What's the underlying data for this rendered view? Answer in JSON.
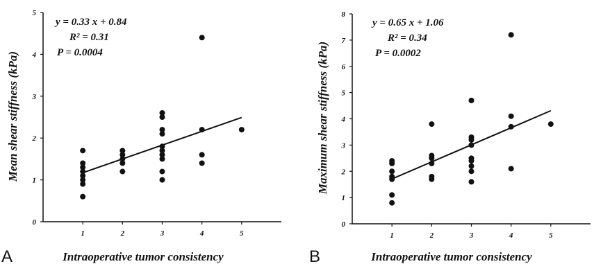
{
  "chart_data": [
    {
      "type": "scatter",
      "panel_label": "A",
      "xlabel": "Intraoperative tumor consistency",
      "ylabel": "Mean shear stiffness (kPa)",
      "xlim": [
        0,
        6
      ],
      "ylim": [
        0,
        5
      ],
      "xticks": [
        1,
        2,
        3,
        4,
        5
      ],
      "yticks": [
        0,
        1,
        2,
        3,
        4,
        5
      ],
      "annotations": [
        "y = 0.33 x + 0.84",
        "R² = 0.31",
        "P = 0.0004"
      ],
      "trendline": {
        "slope": 0.33,
        "intercept": 0.84,
        "x_start": 1,
        "x_end": 5
      },
      "points": [
        [
          1,
          1.7
        ],
        [
          1,
          1.4
        ],
        [
          1,
          1.3
        ],
        [
          1,
          1.2
        ],
        [
          1,
          1.1
        ],
        [
          1,
          1.0
        ],
        [
          1,
          0.9
        ],
        [
          1,
          0.6
        ],
        [
          2,
          1.7
        ],
        [
          2,
          1.6
        ],
        [
          2,
          1.5
        ],
        [
          2,
          1.4
        ],
        [
          2,
          1.2
        ],
        [
          3,
          2.6
        ],
        [
          3,
          2.5
        ],
        [
          3,
          2.2
        ],
        [
          3,
          2.1
        ],
        [
          3,
          1.8
        ],
        [
          3,
          1.7
        ],
        [
          3,
          1.6
        ],
        [
          3,
          1.5
        ],
        [
          3,
          1.2
        ],
        [
          3,
          1.0
        ],
        [
          4,
          4.4
        ],
        [
          4,
          2.2
        ],
        [
          4,
          1.6
        ],
        [
          4,
          1.4
        ],
        [
          5,
          2.2
        ]
      ]
    },
    {
      "type": "scatter",
      "panel_label": "B",
      "xlabel": "Intraoperative tumor consistency",
      "ylabel": "Maximum shear stiffness (kPa)",
      "xlim": [
        0,
        6
      ],
      "ylim": [
        0,
        8
      ],
      "xticks": [
        1,
        2,
        3,
        4,
        5
      ],
      "yticks": [
        0,
        1,
        2,
        3,
        4,
        5,
        6,
        7,
        8
      ],
      "annotations": [
        "y = 0.65 x + 1.06",
        "R² = 0.34",
        "P = 0.0002"
      ],
      "trendline": {
        "slope": 0.65,
        "intercept": 1.06,
        "x_start": 1,
        "x_end": 5
      },
      "points": [
        [
          1,
          2.4
        ],
        [
          1,
          2.3
        ],
        [
          1,
          2.0
        ],
        [
          1,
          1.8
        ],
        [
          1,
          1.7
        ],
        [
          1,
          1.1
        ],
        [
          1,
          0.8
        ],
        [
          2,
          3.8
        ],
        [
          2,
          2.6
        ],
        [
          2,
          2.5
        ],
        [
          2,
          2.3
        ],
        [
          2,
          1.8
        ],
        [
          2,
          1.7
        ],
        [
          3,
          4.7
        ],
        [
          3,
          3.3
        ],
        [
          3,
          3.2
        ],
        [
          3,
          3.0
        ],
        [
          3,
          2.5
        ],
        [
          3,
          2.4
        ],
        [
          3,
          2.2
        ],
        [
          3,
          2.0
        ],
        [
          3,
          1.6
        ],
        [
          4,
          7.2
        ],
        [
          4,
          4.1
        ],
        [
          4,
          3.7
        ],
        [
          4,
          2.1
        ],
        [
          5,
          3.8
        ]
      ]
    }
  ]
}
